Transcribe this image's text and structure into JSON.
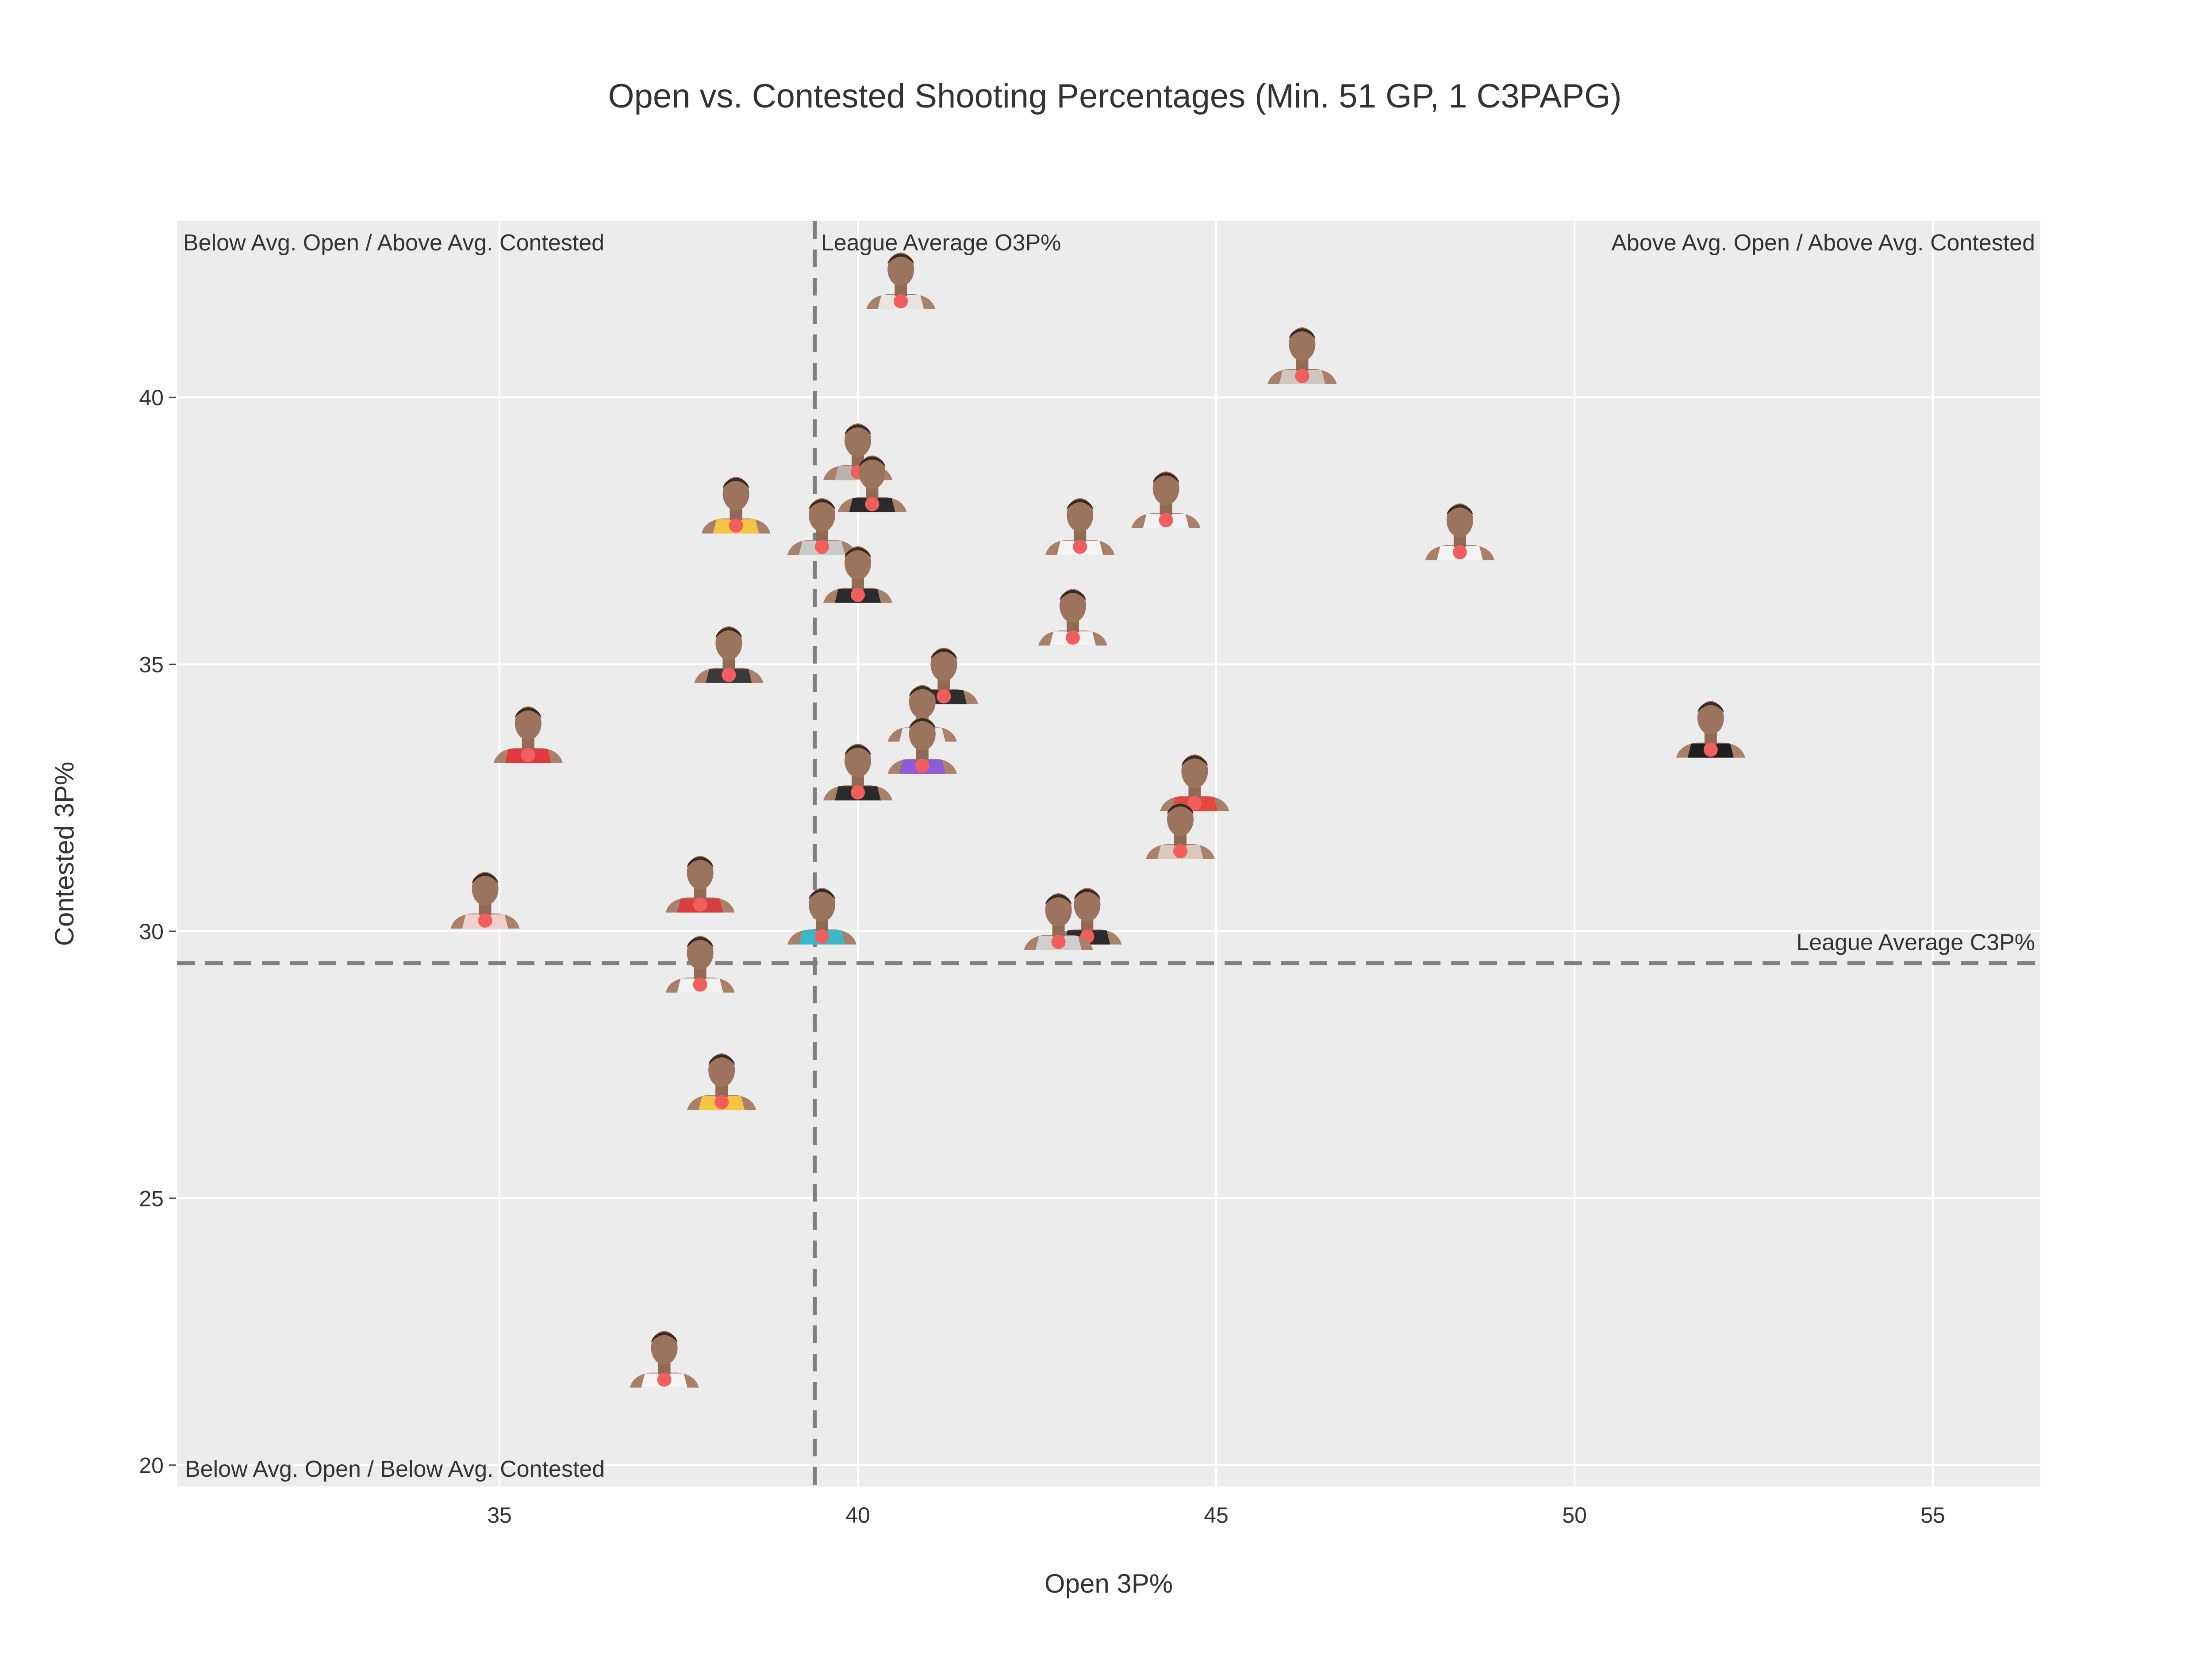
{
  "chart_data": {
    "type": "scatter",
    "title": "Open vs. Contested Shooting Percentages (Min. 51 GP, 1 C3PAPG)",
    "xlabel": "Open 3P%",
    "ylabel": "Contested 3P%",
    "xlim": [
      30.5,
      56.5
    ],
    "ylim": [
      19.6,
      43.3
    ],
    "x_ticks": [
      35,
      40,
      45,
      50,
      55
    ],
    "y_ticks": [
      20,
      25,
      30,
      35,
      40
    ],
    "grid": true,
    "legend": "none",
    "reference_lines": [
      {
        "axis": "x",
        "value": 39.4,
        "label": "League Average O3P%"
      },
      {
        "axis": "y",
        "value": 29.4,
        "label": "League Average C3P%"
      }
    ],
    "quadrant_labels": {
      "top_left": "Below Avg. Open / Above Avg. Contested",
      "top_right": "Above Avg. Open / Above Avg. Contested",
      "bottom_left": "Below Avg. Open / Below Avg. Contested"
    },
    "points": [
      {
        "x": 40.6,
        "y": 41.8,
        "jersey": "#e8e4e0"
      },
      {
        "x": 46.2,
        "y": 40.4,
        "jersey": "#cfc6bf"
      },
      {
        "x": 40.0,
        "y": 38.6,
        "jersey": "#b9b3ae"
      },
      {
        "x": 40.2,
        "y": 38.0,
        "jersey": "#2a2a2a"
      },
      {
        "x": 38.3,
        "y": 37.6,
        "jersey": "#f4c542"
      },
      {
        "x": 44.3,
        "y": 37.7,
        "jersey": "#f2f2f5"
      },
      {
        "x": 39.5,
        "y": 37.2,
        "jersey": "#c9c9c9"
      },
      {
        "x": 43.1,
        "y": 37.2,
        "jersey": "#f5f5f5"
      },
      {
        "x": 48.4,
        "y": 37.1,
        "jersey": "#f3f3f3"
      },
      {
        "x": 40.0,
        "y": 36.3,
        "jersey": "#2b2b2b"
      },
      {
        "x": 43.0,
        "y": 35.5,
        "jersey": "#f3f3f3"
      },
      {
        "x": 38.2,
        "y": 34.8,
        "jersey": "#3a3a3a"
      },
      {
        "x": 41.2,
        "y": 34.4,
        "jersey": "#2e2e2e"
      },
      {
        "x": 40.9,
        "y": 33.7,
        "jersey": "#e9e9e9"
      },
      {
        "x": 35.4,
        "y": 33.3,
        "jersey": "#e0393e"
      },
      {
        "x": 51.9,
        "y": 33.4,
        "jersey": "#1f1f1f"
      },
      {
        "x": 40.9,
        "y": 33.1,
        "jersey": "#8e5cd6"
      },
      {
        "x": 40.0,
        "y": 32.6,
        "jersey": "#2b2b2b"
      },
      {
        "x": 44.7,
        "y": 32.4,
        "jersey": "#e5473f"
      },
      {
        "x": 44.5,
        "y": 31.5,
        "jersey": "#d9c9b8"
      },
      {
        "x": 34.8,
        "y": 30.2,
        "jersey": "#f0d0cc"
      },
      {
        "x": 37.8,
        "y": 30.5,
        "jersey": "#d63f3f"
      },
      {
        "x": 39.5,
        "y": 29.9,
        "jersey": "#3ab7c9"
      },
      {
        "x": 43.2,
        "y": 29.9,
        "jersey": "#2a2a2a"
      },
      {
        "x": 42.8,
        "y": 29.8,
        "jersey": "#cfcfcf"
      },
      {
        "x": 37.8,
        "y": 29.0,
        "jersey": "#f2f2f2"
      },
      {
        "x": 38.1,
        "y": 26.8,
        "jersey": "#f4c542"
      },
      {
        "x": 37.3,
        "y": 21.6,
        "jersey": "#f5f5f5"
      }
    ]
  },
  "colors": {
    "plot_bg": "#ececec",
    "grid": "#ffffff",
    "ref_line": "#7f7f7f",
    "text": "#333333",
    "marker": "#f25e5e"
  }
}
